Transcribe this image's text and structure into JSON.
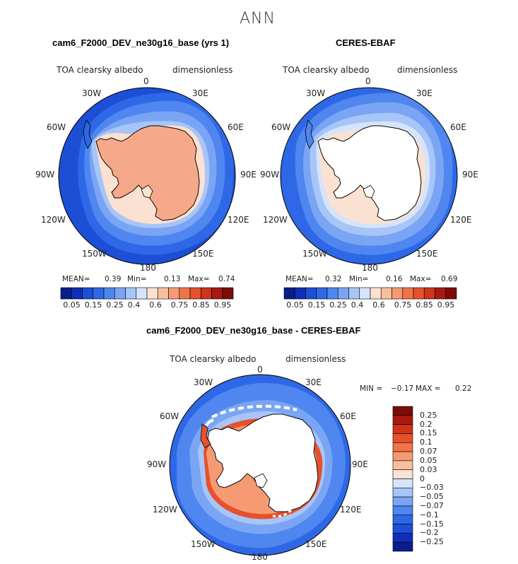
{
  "suptitle": "ANN",
  "panels": [
    {
      "title": "cam6_F2000_DEV_ne30g16_base (yrs 1)",
      "variable": "TOA clearsky albedo",
      "units": "dimensionless",
      "stats": {
        "mean_label": "MEAN=",
        "mean": "0.39",
        "min_label": "Min=",
        "min": "0.13",
        "max_label": "Max=",
        "max": "0.74"
      }
    },
    {
      "title": "CERES-EBAF",
      "variable": "TOA clearsky albedo",
      "units": "dimensionless",
      "stats": {
        "mean_label": "MEAN=",
        "mean": "0.32",
        "min_label": "Min=",
        "min": "0.16",
        "max_label": "Max=",
        "max": "0.69"
      }
    },
    {
      "title": "cam6_F2000_DEV_ne30g16_base - CERES-EBAF",
      "variable": "TOA clearsky albedo",
      "units": "dimensionless",
      "stats": {
        "min_label": "MIN =",
        "min": "−0.17",
        "max_label": "MAX =",
        "max": "0.22"
      }
    }
  ],
  "longitude_labels": [
    "0",
    "30E",
    "60E",
    "90E",
    "120E",
    "150E",
    "180",
    "150W",
    "120W",
    "90W",
    "60W",
    "30W"
  ],
  "colorbar_abs": {
    "tick_labels": [
      "0.05",
      "0.15",
      "0.25",
      "0.4",
      "0.6",
      "0.75",
      "0.85",
      "0.95"
    ],
    "colors": [
      "#0a1d8a",
      "#0f2fb8",
      "#1c4fd6",
      "#2e68e6",
      "#4f86ef",
      "#7aa5f4",
      "#a8c5f7",
      "#d6e4fb",
      "#fbe1d1",
      "#f8bf9f",
      "#f59a72",
      "#ef7447",
      "#e5512a",
      "#d0321a",
      "#a9190f",
      "#7d0b08"
    ]
  },
  "colorbar_diff": {
    "tick_labels": [
      "0.25",
      "0.2",
      "0.15",
      "0.1",
      "0.07",
      "0.05",
      "0.03",
      "0",
      "−0.03",
      "−0.05",
      "−0.07",
      "−0.1",
      "−0.15",
      "−0.2",
      "−0.25"
    ],
    "colors": [
      "#7d0b08",
      "#a9190f",
      "#d0321a",
      "#e5512a",
      "#ef7447",
      "#f59a72",
      "#f8bf9f",
      "#fbe1d1",
      "#d6e4fb",
      "#a8c5f7",
      "#7aa5f4",
      "#4f86ef",
      "#2e68e6",
      "#1c4fd6",
      "#0f2fb8",
      "#0a1d8a"
    ]
  },
  "colors": {
    "ocean_deep": "#1c4fd6",
    "ocean_mid": "#2e68e6",
    "ocean_light": "#4f86ef",
    "ice_light": "#a8c5f7",
    "antarctica_model": "#f6a98a",
    "diff_positive": "#e5512a"
  }
}
